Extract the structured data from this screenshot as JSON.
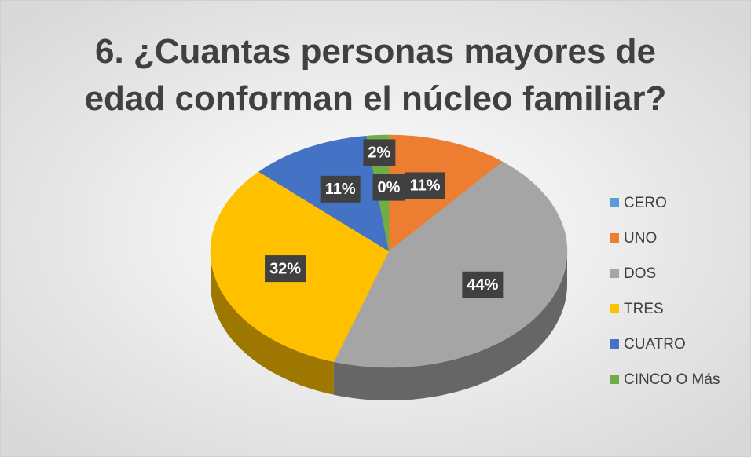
{
  "chart_data": {
    "type": "pie3d",
    "title": "6. ¿Cuantas personas mayores de\nedad conforman el núcleo familiar?",
    "categories": [
      "CERO",
      "UNO",
      "DOS",
      "TRES",
      "CUATRO",
      "CINCO O Más"
    ],
    "values": [
      0,
      11,
      44,
      32,
      11,
      2
    ],
    "value_labels": [
      "0%",
      "11%",
      "44%",
      "32%",
      "11%",
      "2%"
    ],
    "colors": [
      "#5b9bd5",
      "#ed7d31",
      "#a5a5a5",
      "#ffc000",
      "#4472c4",
      "#70ad47"
    ],
    "legend": "right"
  }
}
